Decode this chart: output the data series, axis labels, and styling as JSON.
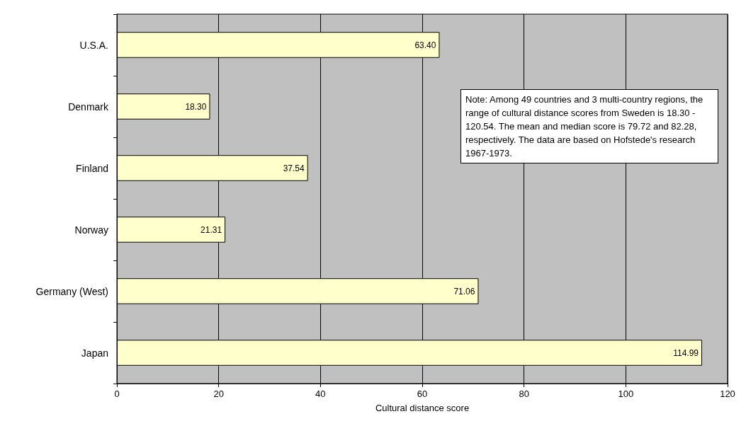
{
  "chart_data": {
    "type": "bar",
    "orientation": "horizontal",
    "xlabel": "Cultural distance score",
    "categories": [
      "U.S.A.",
      "Denmark",
      "Finland",
      "Norway",
      "Germany (West)",
      "Japan"
    ],
    "values": [
      63.4,
      18.3,
      37.54,
      21.31,
      71.06,
      114.99
    ],
    "value_labels": [
      "63.40",
      "18.30",
      "37.54",
      "21.31",
      "71.06",
      "114.99"
    ],
    "color": "#ffffcc",
    "xlim": [
      0,
      120
    ],
    "xticks": [
      0,
      20,
      40,
      60,
      80,
      100,
      120
    ],
    "grid": "x",
    "annotations": [
      "Note: Among 49 countries and 3 multi-country regions, the range of cultural distance scores from Sweden is 18.30 - 120.54. The mean and median score is 79.72 and 82.28, respectively. The data are based on Hofstede's research 1967-1973."
    ]
  }
}
